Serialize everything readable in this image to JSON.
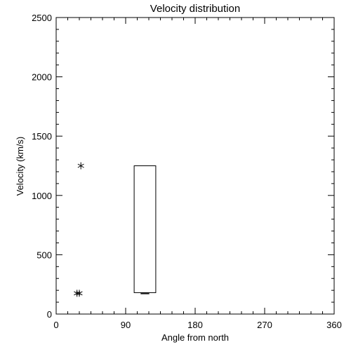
{
  "chart_data": {
    "type": "box",
    "title": "Velocity distribution",
    "xlabel": "Angle from north",
    "ylabel": "Velocity (km/s)",
    "xlim": [
      0,
      360
    ],
    "xticks": [
      0,
      90,
      180,
      270,
      360
    ],
    "xminor": 6,
    "ylim": [
      0,
      2500
    ],
    "yticks": [
      0,
      500,
      1000,
      1500,
      2000,
      2500
    ],
    "yminor": 5,
    "color": "#000000",
    "boxes": [
      {
        "x0": 101,
        "x1": 129,
        "low": 180,
        "median": 172,
        "high": 1250
      }
    ],
    "points": {
      "x": [
        32,
        27,
        30
      ],
      "y": [
        1250,
        175,
        175
      ]
    }
  }
}
